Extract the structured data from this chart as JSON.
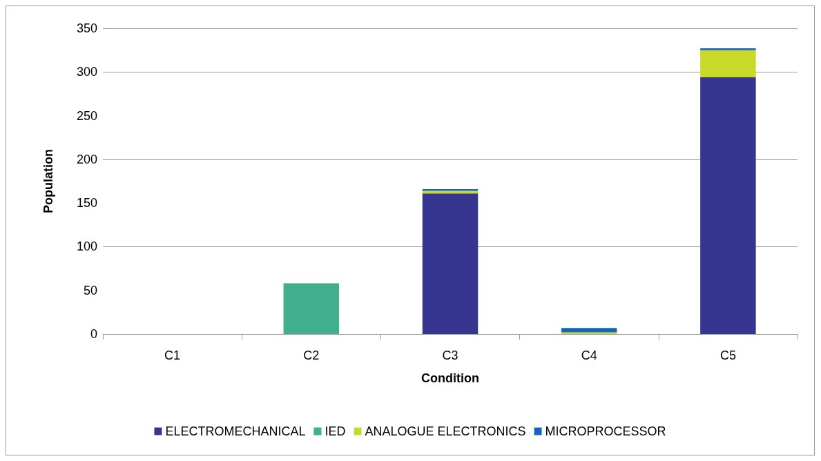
{
  "chart_data": {
    "type": "bar",
    "stacked": true,
    "xlabel": "Condition",
    "ylabel": "Population",
    "categories": [
      "C1",
      "C2",
      "C3",
      "C4",
      "C5"
    ],
    "series": [
      {
        "name": "ELECTROMECHANICAL",
        "color": "#363590",
        "values": [
          0,
          0,
          161,
          0,
          294
        ]
      },
      {
        "name": "IED",
        "color": "#40af8d",
        "values": [
          0,
          58,
          0,
          0,
          0
        ]
      },
      {
        "name": "ANALOGUE ELECTRONICS",
        "color": "#c8d92a",
        "values": [
          0,
          0,
          3,
          2,
          31
        ]
      },
      {
        "name": "MICROPROCESSOR",
        "color": "#1565b8",
        "values": [
          0,
          0,
          2,
          5,
          2
        ]
      }
    ],
    "ylim": [
      0,
      350
    ],
    "yticks": [
      0,
      50,
      100,
      150,
      200,
      250,
      300,
      350
    ],
    "grid": "y",
    "legend": "bottom"
  }
}
